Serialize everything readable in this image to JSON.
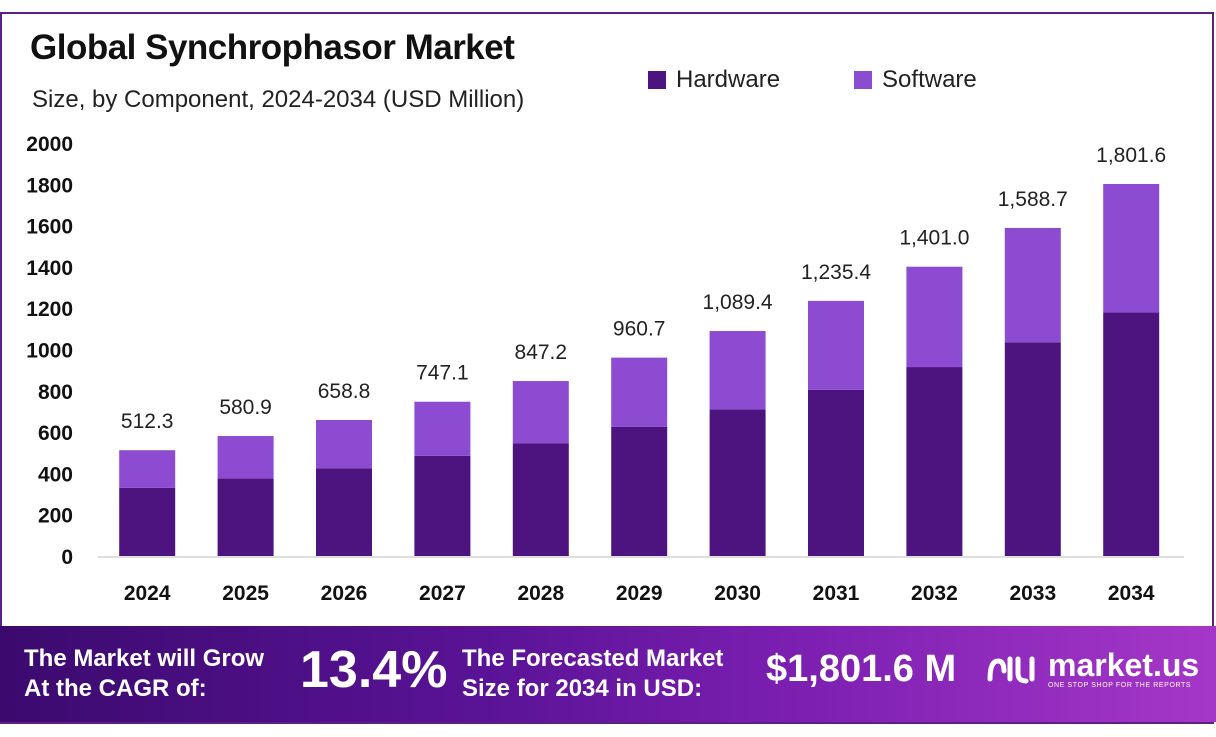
{
  "header": {
    "title": "Global Synchrophasor Market",
    "subtitle": "Size, by Component, 2024-2034 (USD Million)"
  },
  "legend": [
    {
      "label": "Hardware",
      "color": "#4d1480"
    },
    {
      "label": "Software",
      "color": "#8c4bd1"
    }
  ],
  "chart_data": {
    "type": "bar",
    "stacked": true,
    "categories": [
      "2024",
      "2025",
      "2026",
      "2027",
      "2028",
      "2029",
      "2030",
      "2031",
      "2032",
      "2033",
      "2034"
    ],
    "series": [
      {
        "name": "Hardware",
        "color": "#4d1480",
        "values": [
          330,
          375,
          425,
          485,
          545,
          625,
          710,
          805,
          915,
          1035,
          1180
        ]
      },
      {
        "name": "Software",
        "color": "#8c4bd1",
        "values": [
          182.3,
          205.9,
          233.8,
          262.1,
          302.2,
          335.7,
          379.4,
          430.4,
          486.0,
          553.7,
          621.6
        ]
      }
    ],
    "totals": [
      512.3,
      580.9,
      658.8,
      747.1,
      847.2,
      960.7,
      1089.4,
      1235.4,
      1401.0,
      1588.7,
      1801.6
    ],
    "total_labels": [
      "512.3",
      "580.9",
      "658.8",
      "747.1",
      "847.2",
      "960.7",
      "1,089.4",
      "1,235.4",
      "1,401.0",
      "1,588.7",
      "1,801.6"
    ],
    "ylim": [
      0,
      2000
    ],
    "yticks": [
      0,
      200,
      400,
      600,
      800,
      1000,
      1200,
      1400,
      1600,
      1800,
      2000
    ],
    "grid": false,
    "legend_position": "top-right"
  },
  "footer": {
    "cagr_label_line1": "The Market will Grow",
    "cagr_label_line2": "At the CAGR of:",
    "cagr_value": "13.4%",
    "forecast_label_line1": "The Forecasted Market",
    "forecast_label_line2": "Size for 2034 in USD:",
    "forecast_value": "$1,801.6 M",
    "brand_name": "market.us",
    "brand_tagline": "ONE STOP SHOP FOR THE REPORTS"
  }
}
